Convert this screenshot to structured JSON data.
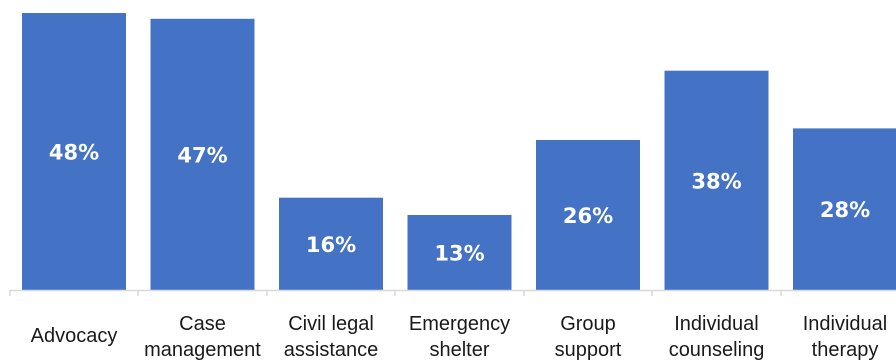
{
  "chart_data": {
    "type": "bar",
    "title": "",
    "xlabel": "",
    "ylabel": "",
    "categories": [
      [
        "Advocacy"
      ],
      [
        "Case",
        "management"
      ],
      [
        "Civil legal",
        "assistance"
      ],
      [
        "Emergency",
        "shelter"
      ],
      [
        "Group",
        "support"
      ],
      [
        "Individual",
        "counseling"
      ],
      [
        "Individual",
        "therapy"
      ]
    ],
    "values": [
      48,
      47,
      16,
      13,
      26,
      38,
      28
    ],
    "value_labels": [
      "48%",
      "47%",
      "16%",
      "13%",
      "26%",
      "38%",
      "28%"
    ],
    "ylim": [
      0,
      48
    ],
    "bar_color": "#4472c4",
    "label_color": "#ffffff",
    "axis_color": "#d9d9d9",
    "grid": false,
    "legend": "none"
  }
}
